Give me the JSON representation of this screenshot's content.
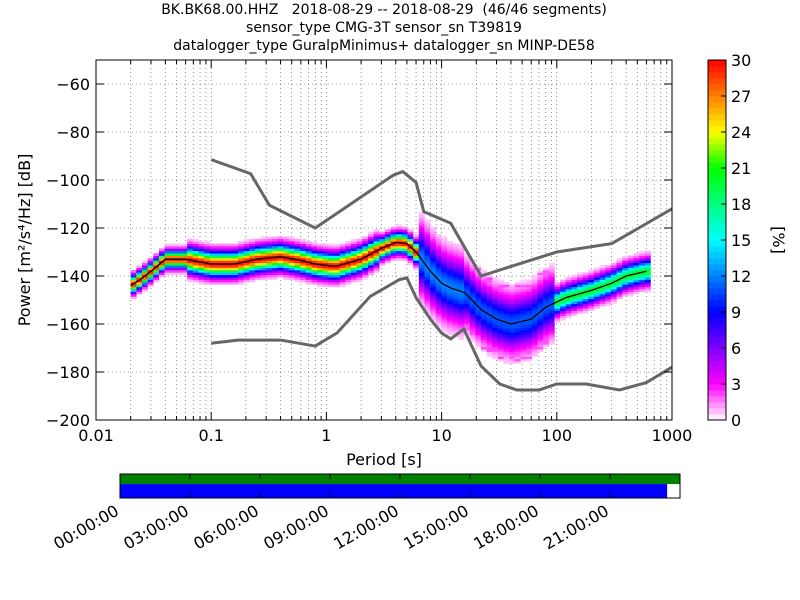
{
  "header": {
    "title_lines": [
      "BK.BK68.00.HHZ   2018-08-29 -- 2018-08-29  (46/46 segments)",
      "sensor_type CMG-3T sensor_sn T39819",
      "datalogger_type GuralpMinimus+ datalogger_sn MINP-DE58"
    ]
  },
  "chart_data": {
    "type": "heatmap",
    "xscale": "log",
    "xlim": [
      0.01,
      1000
    ],
    "ylim": [
      -200,
      -50
    ],
    "xlabel": "Period [s]",
    "ylabel": "Power [m²/s⁴/Hz] [dB]",
    "x_ticks": [
      {
        "value": 0.01,
        "label": "0.01"
      },
      {
        "value": 0.1,
        "label": "0.1"
      },
      {
        "value": 1,
        "label": "1"
      },
      {
        "value": 10,
        "label": "10"
      },
      {
        "value": 100,
        "label": "100"
      },
      {
        "value": 1000,
        "label": "1000"
      }
    ],
    "y_ticks": [
      {
        "value": -60,
        "label": "−60"
      },
      {
        "value": -80,
        "label": "−80"
      },
      {
        "value": -100,
        "label": "−100"
      },
      {
        "value": -120,
        "label": "−120"
      },
      {
        "value": -140,
        "label": "−140"
      },
      {
        "value": -160,
        "label": "−160"
      },
      {
        "value": -180,
        "label": "−180"
      },
      {
        "value": -200,
        "label": "−200"
      }
    ],
    "grid": true,
    "colorbar": {
      "label": "[%]",
      "range": [
        0,
        30
      ],
      "ticks": [
        {
          "value": 0,
          "label": "0"
        },
        {
          "value": 3,
          "label": "3"
        },
        {
          "value": 6,
          "label": "6"
        },
        {
          "value": 9,
          "label": "9"
        },
        {
          "value": 12,
          "label": "12"
        },
        {
          "value": 15,
          "label": "15"
        },
        {
          "value": 18,
          "label": "18"
        },
        {
          "value": 21,
          "label": "21"
        },
        {
          "value": 24,
          "label": "24"
        },
        {
          "value": 27,
          "label": "27"
        },
        {
          "value": 30,
          "label": "30"
        }
      ],
      "colors": [
        "#ffffff",
        "#ff00ff",
        "#8000ff",
        "#0000ff",
        "#0080ff",
        "#00ffff",
        "#00ff80",
        "#00ff00",
        "#ffff00",
        "#ff8000",
        "#ff0000"
      ]
    },
    "noise_models": [
      {
        "name": "high",
        "points": [
          [
            0.1,
            -91.5
          ],
          [
            0.22,
            -97.4
          ],
          [
            0.32,
            -110.5
          ],
          [
            0.8,
            -120
          ],
          [
            3.8,
            -98
          ],
          [
            4.6,
            -96.5
          ],
          [
            6,
            -101
          ],
          [
            7,
            -113.2
          ],
          [
            12,
            -118
          ],
          [
            22,
            -140
          ],
          [
            40,
            -136
          ],
          [
            100,
            -130
          ],
          [
            300,
            -126.5
          ],
          [
            1000,
            -112
          ]
        ]
      },
      {
        "name": "low",
        "points": [
          [
            0.1,
            -168
          ],
          [
            0.17,
            -166.7
          ],
          [
            0.4,
            -166.7
          ],
          [
            0.8,
            -169.2
          ],
          [
            1.24,
            -163.7
          ],
          [
            2.4,
            -148.5
          ],
          [
            4.3,
            -141.5
          ],
          [
            5,
            -140.8
          ],
          [
            6,
            -149
          ],
          [
            8,
            -158
          ],
          [
            10,
            -163.8
          ],
          [
            12,
            -166.2
          ],
          [
            15.6,
            -162.1
          ],
          [
            22,
            -177.5
          ],
          [
            32,
            -185
          ],
          [
            45,
            -187.5
          ],
          [
            70,
            -187.5
          ],
          [
            100,
            -185
          ],
          [
            180,
            -185
          ],
          [
            350,
            -187.5
          ],
          [
            600,
            -184.4
          ],
          [
            1000,
            -178
          ]
        ]
      }
    ],
    "mode_curve": [
      [
        0.02,
        -144
      ],
      [
        0.025,
        -141
      ],
      [
        0.03,
        -138
      ],
      [
        0.04,
        -133
      ],
      [
        0.06,
        -133
      ],
      [
        0.1,
        -135
      ],
      [
        0.16,
        -135
      ],
      [
        0.25,
        -133
      ],
      [
        0.4,
        -132
      ],
      [
        0.6,
        -133.5
      ],
      [
        0.8,
        -135
      ],
      [
        1.2,
        -136
      ],
      [
        2,
        -133
      ],
      [
        3,
        -128.5
      ],
      [
        4,
        -126
      ],
      [
        5,
        -126.5
      ],
      [
        6,
        -130
      ],
      [
        8,
        -138
      ],
      [
        10,
        -143
      ],
      [
        12,
        -145
      ],
      [
        16,
        -147
      ],
      [
        22,
        -154
      ],
      [
        30,
        -158
      ],
      [
        40,
        -160
      ],
      [
        60,
        -158
      ],
      [
        80,
        -153
      ],
      [
        120,
        -149
      ],
      [
        200,
        -146
      ],
      [
        300,
        -143
      ],
      [
        400,
        -140
      ],
      [
        600,
        -138
      ]
    ],
    "timeline": {
      "ticks": [
        "00:00:00",
        "03:00:00",
        "06:00:00",
        "09:00:00",
        "12:00:00",
        "15:00:00",
        "18:00:00",
        "21:00:00"
      ],
      "coverage_fraction": 0.977,
      "colors": {
        "data": "#0000ff",
        "gaps": "#008000"
      }
    }
  }
}
